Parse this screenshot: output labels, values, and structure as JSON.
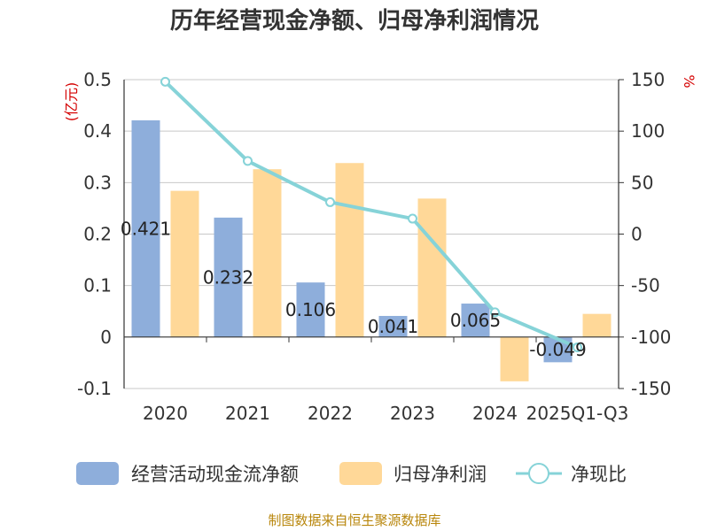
{
  "chart_data": {
    "type": "bar",
    "title": "历年经营现金净额、归母净利润情况",
    "categories": [
      "2020",
      "2021",
      "2022",
      "2023",
      "2024",
      "2025Q1-Q3"
    ],
    "series": [
      {
        "name": "经营活动现金流净额",
        "axis": "left",
        "color": "#8eaedb",
        "values": [
          0.421,
          0.232,
          0.106,
          0.041,
          0.065,
          -0.049
        ],
        "labels": [
          "0.421",
          "0.232",
          "0.106",
          "0.041",
          "0.065",
          "-0.049"
        ]
      },
      {
        "name": "归母净利润",
        "axis": "left",
        "color": "#ffd898",
        "values": [
          0.284,
          0.326,
          0.338,
          0.269,
          -0.086,
          0.045
        ]
      },
      {
        "name": "净现比",
        "axis": "right",
        "type": "line",
        "color": "#86d3d8",
        "values": [
          148,
          71,
          31,
          15,
          -76,
          -110
        ]
      }
    ],
    "left_axis": {
      "unit": "(亿元)",
      "ylim": [
        -0.1,
        0.5
      ],
      "ticks": [
        0.5,
        0.4,
        0.3,
        0.2,
        0.1,
        0,
        -0.1
      ],
      "tick_labels": [
        "0.5",
        "0.4",
        "0.3",
        "0.2",
        "0.1",
        "0",
        "-0.1"
      ]
    },
    "right_axis": {
      "unit": "%",
      "ylim": [
        -150,
        150
      ],
      "ticks": [
        150,
        100,
        50,
        0,
        -50,
        -100,
        -150
      ],
      "tick_labels": [
        "150",
        "100",
        "50",
        "0",
        "-50",
        "-100",
        "-150"
      ]
    },
    "source": "制图数据来自恒生聚源数据库"
  }
}
